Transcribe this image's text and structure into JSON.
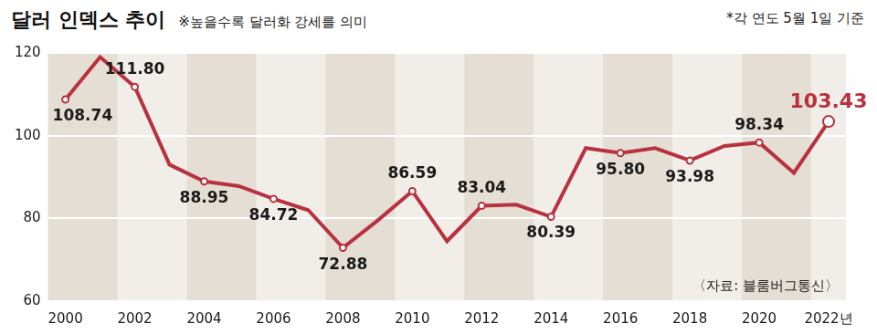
{
  "chart_data": {
    "type": "line",
    "title": "달러 인덱스 추이",
    "subtitle": "※높을수록 달러화 강세를 의미",
    "annotations": [
      "*각 연도 5월 1일 기준",
      "〈자료: 블룸버그통신〉"
    ],
    "categories": [
      "2000",
      null,
      "2002",
      null,
      "2004",
      null,
      "2006",
      null,
      "2008",
      null,
      "2010",
      null,
      "2012",
      null,
      "2014",
      null,
      "2016",
      null,
      "2018",
      null,
      "2020",
      null,
      "2022년"
    ],
    "values": [
      108.74,
      119,
      111.8,
      93,
      88.95,
      87.8,
      84.72,
      82,
      72.88,
      79.5,
      86.59,
      74.5,
      83.04,
      83.3,
      80.39,
      97,
      95.8,
      97,
      93.98,
      97.5,
      98.34,
      91,
      103.43
    ],
    "value_labels": [
      "108.74",
      null,
      "111.80",
      null,
      "88.95",
      null,
      "84.72",
      null,
      "72.88",
      null,
      "86.59",
      null,
      "83.04",
      null,
      "80.39",
      null,
      "95.80",
      null,
      "93.98",
      null,
      "98.34",
      null,
      "103.43"
    ],
    "color": "#b8323e",
    "marker": "circle",
    "data_labels": true,
    "ylim": [
      60,
      120
    ],
    "yticks": [
      60,
      80,
      100,
      120
    ],
    "grid": true
  }
}
